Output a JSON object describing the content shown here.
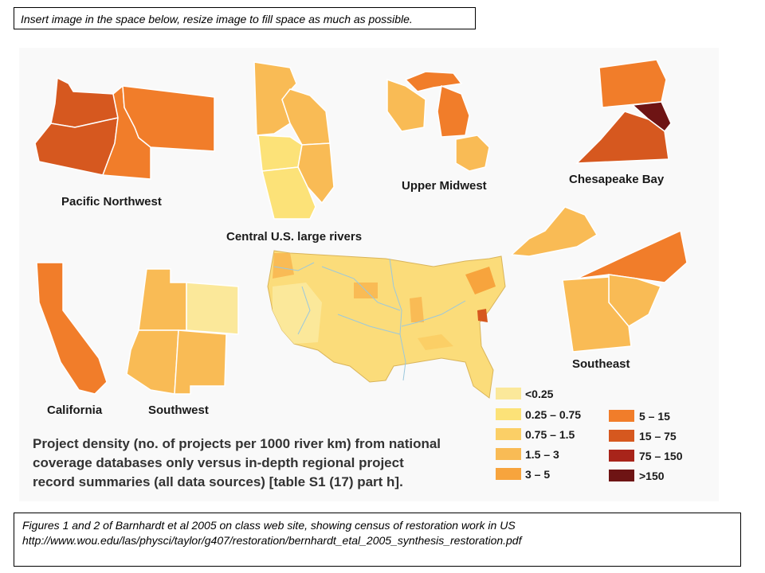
{
  "instruction": "Insert image in the space below, resize image to fill space as much as possible.",
  "figure": {
    "regions": {
      "pacific_northwest": "Pacific Northwest",
      "central_rivers": "Central U.S. large rivers",
      "upper_midwest": "Upper Midwest",
      "chesapeake": "Chesapeake Bay",
      "california": "California",
      "southwest": "Southwest",
      "southeast": "Southeast"
    },
    "title_lines": [
      "Project density (no. of projects per 1000 river km) from national",
      "coverage databases only versus in-depth regional project",
      "record summaries (all data sources) [table S1 (17) part h]."
    ],
    "legend": [
      {
        "label": "<0.25",
        "color": "#fbe89a"
      },
      {
        "label": "0.25 – 0.75",
        "color": "#fce278"
      },
      {
        "label": "0.75 – 1.5",
        "color": "#fbcf66"
      },
      {
        "label": "1.5 – 3",
        "color": "#f9bb55"
      },
      {
        "label": "3 – 5",
        "color": "#f7a43d"
      },
      {
        "label": "5 – 15",
        "color": "#f17d2a"
      },
      {
        "label": "15 – 75",
        "color": "#d6581f"
      },
      {
        "label": "75 – 150",
        "color": "#a8241a"
      },
      {
        "label": ">150",
        "color": "#6e1414"
      }
    ]
  },
  "caption": {
    "line1": "Figures 1 and 2 of Barnhardt et al 2005 on class web site, showing census of restoration work in US",
    "line2": "http://www.wou.edu/las/physci/taylor/g407/restoration/bernhardt_etal_2005_synthesis_restoration.pdf"
  }
}
